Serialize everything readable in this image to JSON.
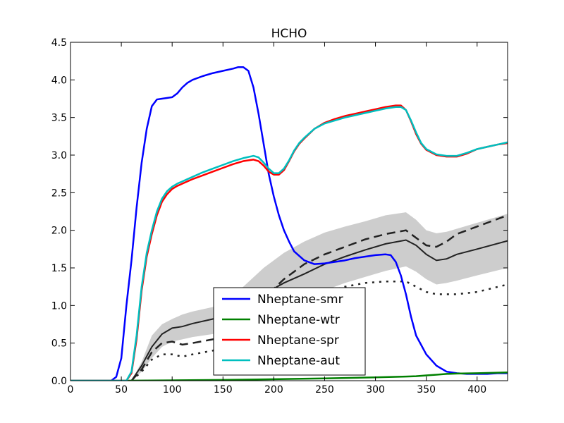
{
  "chart_data": {
    "type": "line",
    "title": "HCHO",
    "xlabel": "",
    "ylabel": "",
    "xlim": [
      0,
      430
    ],
    "ylim": [
      0.0,
      4.5
    ],
    "xticks": [
      0,
      50,
      100,
      150,
      200,
      250,
      300,
      350,
      400
    ],
    "yticks": [
      0.0,
      0.5,
      1.0,
      1.5,
      2.0,
      2.5,
      3.0,
      3.5,
      4.0,
      4.5
    ],
    "xtick_labels": [
      "0",
      "50",
      "100",
      "150",
      "200",
      "250",
      "300",
      "350",
      "400"
    ],
    "ytick_labels": [
      "0.0",
      "0.5",
      "1.0",
      "1.5",
      "2.0",
      "2.5",
      "3.0",
      "3.5",
      "4.0",
      "4.5"
    ],
    "grid": false,
    "legend_position": "lower-center",
    "series": [
      {
        "name": "Nheptane-smr",
        "color": "#0000ff",
        "x": [
          0,
          40,
          45,
          50,
          55,
          60,
          65,
          70,
          75,
          80,
          85,
          90,
          100,
          105,
          110,
          115,
          120,
          130,
          140,
          150,
          160,
          165,
          170,
          175,
          180,
          185,
          190,
          195,
          200,
          205,
          210,
          215,
          220,
          230,
          240,
          250,
          260,
          270,
          280,
          290,
          300,
          310,
          315,
          320,
          325,
          330,
          335,
          340,
          350,
          360,
          370,
          380,
          390,
          400,
          410,
          420,
          430
        ],
        "y": [
          0.0,
          0.0,
          0.05,
          0.3,
          1.0,
          1.6,
          2.3,
          2.9,
          3.35,
          3.65,
          3.74,
          3.75,
          3.77,
          3.82,
          3.9,
          3.96,
          4.0,
          4.05,
          4.09,
          4.12,
          4.15,
          4.17,
          4.17,
          4.12,
          3.9,
          3.55,
          3.15,
          2.75,
          2.45,
          2.2,
          2.0,
          1.85,
          1.72,
          1.6,
          1.55,
          1.56,
          1.58,
          1.6,
          1.63,
          1.65,
          1.67,
          1.68,
          1.67,
          1.58,
          1.4,
          1.15,
          0.85,
          0.6,
          0.35,
          0.2,
          0.12,
          0.1,
          0.09,
          0.09,
          0.09,
          0.1,
          0.1
        ]
      },
      {
        "name": "Nheptane-wtr",
        "color": "#008000",
        "x": [
          0,
          50,
          100,
          150,
          200,
          250,
          300,
          330,
          340,
          350,
          360,
          370,
          380,
          400,
          430
        ],
        "y": [
          0.0,
          0.0,
          0.005,
          0.01,
          0.02,
          0.03,
          0.045,
          0.055,
          0.06,
          0.07,
          0.08,
          0.09,
          0.095,
          0.1,
          0.11
        ]
      },
      {
        "name": "Nheptane-spr",
        "color": "#ff0000",
        "x": [
          0,
          55,
          60,
          65,
          70,
          75,
          80,
          85,
          90,
          95,
          100,
          105,
          110,
          120,
          130,
          140,
          150,
          160,
          170,
          180,
          185,
          190,
          195,
          200,
          205,
          210,
          215,
          220,
          225,
          230,
          240,
          250,
          260,
          270,
          280,
          290,
          300,
          310,
          320,
          325,
          330,
          335,
          340,
          345,
          350,
          360,
          370,
          380,
          390,
          400,
          410,
          420,
          430
        ],
        "y": [
          0.0,
          0.0,
          0.1,
          0.55,
          1.2,
          1.65,
          1.95,
          2.2,
          2.38,
          2.48,
          2.55,
          2.59,
          2.62,
          2.68,
          2.73,
          2.78,
          2.83,
          2.88,
          2.92,
          2.94,
          2.92,
          2.86,
          2.78,
          2.74,
          2.74,
          2.8,
          2.92,
          3.05,
          3.15,
          3.22,
          3.35,
          3.43,
          3.48,
          3.52,
          3.55,
          3.58,
          3.61,
          3.64,
          3.66,
          3.66,
          3.6,
          3.45,
          3.28,
          3.15,
          3.07,
          3.0,
          2.98,
          2.98,
          3.02,
          3.08,
          3.11,
          3.14,
          3.16
        ]
      },
      {
        "name": "Nheptane-aut",
        "color": "#00bfbf",
        "x": [
          0,
          55,
          60,
          65,
          70,
          75,
          80,
          85,
          90,
          95,
          100,
          105,
          110,
          120,
          130,
          140,
          150,
          160,
          170,
          180,
          185,
          190,
          195,
          200,
          205,
          210,
          215,
          220,
          225,
          230,
          240,
          250,
          260,
          270,
          280,
          290,
          300,
          310,
          320,
          325,
          330,
          335,
          340,
          345,
          350,
          360,
          370,
          380,
          390,
          400,
          410,
          420,
          430
        ],
        "y": [
          0.0,
          0.0,
          0.12,
          0.6,
          1.25,
          1.7,
          2.0,
          2.25,
          2.42,
          2.52,
          2.58,
          2.62,
          2.65,
          2.71,
          2.77,
          2.82,
          2.87,
          2.92,
          2.96,
          2.99,
          2.97,
          2.9,
          2.82,
          2.76,
          2.76,
          2.82,
          2.93,
          3.06,
          3.16,
          3.23,
          3.35,
          3.42,
          3.46,
          3.5,
          3.53,
          3.56,
          3.59,
          3.62,
          3.64,
          3.64,
          3.6,
          3.46,
          3.3,
          3.16,
          3.08,
          3.01,
          2.99,
          2.99,
          3.03,
          3.08,
          3.11,
          3.14,
          3.17
        ]
      }
    ],
    "observations": {
      "mean": {
        "x": [
          60,
          70,
          80,
          90,
          100,
          110,
          120,
          140,
          150,
          170,
          190,
          210,
          230,
          250,
          270,
          290,
          310,
          330,
          340,
          350,
          360,
          370,
          380,
          400,
          430
        ],
        "y": [
          0.0,
          0.2,
          0.45,
          0.62,
          0.7,
          0.72,
          0.76,
          0.82,
          0.88,
          1.0,
          1.15,
          1.3,
          1.42,
          1.55,
          1.65,
          1.74,
          1.82,
          1.87,
          1.8,
          1.68,
          1.6,
          1.62,
          1.68,
          1.75,
          1.86
        ]
      },
      "upper": {
        "x": [
          60,
          70,
          80,
          90,
          100,
          110,
          120,
          140,
          150,
          170,
          190,
          210,
          230,
          250,
          270,
          290,
          310,
          330,
          340,
          350,
          360,
          370,
          380,
          400,
          430
        ],
        "y": [
          0.0,
          0.25,
          0.6,
          0.75,
          0.82,
          0.88,
          0.92,
          0.98,
          1.05,
          1.25,
          1.5,
          1.7,
          1.85,
          1.97,
          2.05,
          2.12,
          2.2,
          2.24,
          2.14,
          2.0,
          1.96,
          1.98,
          2.02,
          2.1,
          2.22
        ]
      },
      "lower": {
        "x": [
          60,
          70,
          80,
          90,
          100,
          110,
          120,
          140,
          150,
          170,
          190,
          210,
          230,
          250,
          270,
          290,
          310,
          330,
          340,
          350,
          360,
          370,
          380,
          400,
          430
        ],
        "y": [
          0.0,
          0.12,
          0.3,
          0.45,
          0.52,
          0.55,
          0.58,
          0.62,
          0.68,
          0.8,
          0.9,
          1.0,
          1.08,
          1.2,
          1.3,
          1.38,
          1.46,
          1.52,
          1.45,
          1.35,
          1.28,
          1.3,
          1.33,
          1.4,
          1.5
        ]
      },
      "dashed": {
        "x": [
          60,
          70,
          80,
          90,
          100,
          110,
          120,
          140,
          150,
          170,
          190,
          210,
          230,
          250,
          270,
          290,
          310,
          330,
          340,
          350,
          360,
          370,
          380,
          400,
          430
        ],
        "y": [
          0.0,
          0.15,
          0.38,
          0.5,
          0.52,
          0.48,
          0.5,
          0.55,
          0.6,
          0.85,
          1.1,
          1.35,
          1.55,
          1.68,
          1.78,
          1.88,
          1.95,
          2.0,
          1.9,
          1.8,
          1.78,
          1.85,
          1.95,
          2.05,
          2.2
        ]
      },
      "dotted": {
        "x": [
          60,
          70,
          80,
          90,
          100,
          110,
          120,
          140,
          150,
          170,
          190,
          210,
          230,
          250,
          270,
          290,
          310,
          330,
          340,
          350,
          360,
          370,
          380,
          400,
          430
        ],
        "y": [
          0.0,
          0.12,
          0.28,
          0.35,
          0.35,
          0.32,
          0.35,
          0.4,
          0.45,
          0.6,
          0.8,
          0.95,
          1.05,
          1.18,
          1.25,
          1.3,
          1.32,
          1.32,
          1.25,
          1.18,
          1.15,
          1.15,
          1.15,
          1.18,
          1.28
        ]
      }
    },
    "band_color": "#c8c8c8",
    "obs_color": "#222222"
  }
}
